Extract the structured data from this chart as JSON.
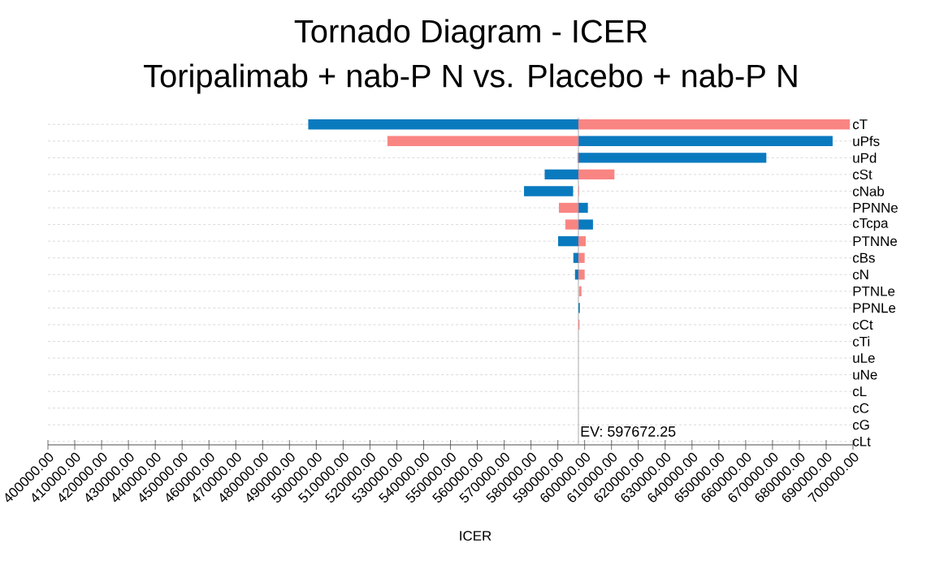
{
  "chart_data": {
    "type": "bar",
    "orientation": "horizontal",
    "title": "Tornado Diagram - ICER",
    "subtitle": "Toripalimab + nab-P N  vs. Placebo + nab-P N",
    "xlabel": "ICER",
    "categories": [
      "cT",
      "uPfs",
      "uPd",
      "cSt",
      "cNab",
      "PPNNe",
      "cTcpa",
      "PTNNe",
      "cBs",
      "cN",
      "PTNLe",
      "PPNLe",
      "cCt",
      "cTi",
      "uLe",
      "uNe",
      "cL",
      "cC",
      "cG",
      "cLt"
    ],
    "series": [
      {
        "color": "#0a7abf",
        "base": [
          497000,
          597700,
          597700,
          585100,
          577400,
          597700,
          597700,
          590100,
          595800,
          596400,
          null,
          597700,
          null,
          null,
          null,
          null,
          null,
          null,
          null,
          null
        ],
        "values": [
          100700,
          94700,
          70000,
          12600,
          18300,
          3500,
          5400,
          7600,
          1900,
          1300,
          null,
          500,
          null,
          null,
          null,
          null,
          null,
          null,
          null,
          null
        ]
      },
      {
        "color": "#f98583",
        "base": [
          597700,
          526500,
          597300,
          597700,
          597700,
          590400,
          592800,
          597700,
          597700,
          597700,
          597900,
          null,
          597700,
          null,
          null,
          null,
          null,
          null,
          null,
          null
        ],
        "values": [
          101100,
          71200,
          400,
          13400,
          200,
          7300,
          4900,
          2700,
          2300,
          2300,
          900,
          null,
          400,
          null,
          null,
          null,
          null,
          null,
          null,
          null
        ]
      }
    ],
    "xlim": [
      400000,
      700000
    ],
    "xticks": [
      {
        "value": 400000,
        "label": "400000.00"
      },
      {
        "value": 410000,
        "label": "410000.00"
      },
      {
        "value": 420000,
        "label": "420000.00"
      },
      {
        "value": 430000,
        "label": "430000.00"
      },
      {
        "value": 440000,
        "label": "440000.00"
      },
      {
        "value": 450000,
        "label": "450000.00"
      },
      {
        "value": 460000,
        "label": "460000.00"
      },
      {
        "value": 470000,
        "label": "470000.00"
      },
      {
        "value": 480000,
        "label": "480000.00"
      },
      {
        "value": 490000,
        "label": "490000.00"
      },
      {
        "value": 500000,
        "label": "500000.00"
      },
      {
        "value": 510000,
        "label": "510000.00"
      },
      {
        "value": 520000,
        "label": "520000.00"
      },
      {
        "value": 530000,
        "label": "530000.00"
      },
      {
        "value": 540000,
        "label": "540000.00"
      },
      {
        "value": 550000,
        "label": "550000.00"
      },
      {
        "value": 560000,
        "label": "560000.00"
      },
      {
        "value": 570000,
        "label": "570000.00"
      },
      {
        "value": 580000,
        "label": "580000.00"
      },
      {
        "value": 590000,
        "label": "590000.00"
      },
      {
        "value": 600000,
        "label": "600000.00"
      },
      {
        "value": 610000,
        "label": "610000.00"
      },
      {
        "value": 620000,
        "label": "620000.00"
      },
      {
        "value": 630000,
        "label": "630000.00"
      },
      {
        "value": 640000,
        "label": "640000.00"
      },
      {
        "value": 650000,
        "label": "650000.00"
      },
      {
        "value": 660000,
        "label": "660000.00"
      },
      {
        "value": 670000,
        "label": "670000.00"
      },
      {
        "value": 680000,
        "label": "680000.00"
      },
      {
        "value": 690000,
        "label": "690000.00"
      },
      {
        "value": 700000,
        "label": "700000.00"
      }
    ],
    "ref_lines": [
      {
        "axis": "x",
        "value": 597672.25,
        "label": "EV: 597672.25",
        "color": "#aaaaaa"
      }
    ],
    "grid": "y"
  }
}
